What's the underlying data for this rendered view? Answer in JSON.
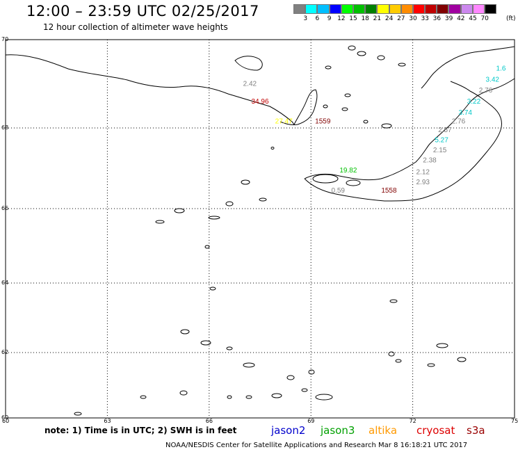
{
  "title": "12:00 – 23:59 UTC 02/25/2017",
  "subtitle": "12 hour collection of altimeter wave heights",
  "colorbar": {
    "colors": [
      "#808080",
      "#00ffff",
      "#00bfff",
      "#0000ff",
      "#00ff00",
      "#00c000",
      "#008000",
      "#ffff00",
      "#ffcc00",
      "#ff8c00",
      "#ff0000",
      "#c00000",
      "#800000",
      "#a000a0",
      "#cc88ee",
      "#ff88ff",
      "#000000"
    ],
    "labels": [
      "3",
      "6",
      "9",
      "12",
      "15",
      "18",
      "21",
      "24",
      "27",
      "30",
      "33",
      "36",
      "39",
      "42",
      "45",
      "70"
    ],
    "unit": "(ft)"
  },
  "map": {
    "lat_labels": [
      "70",
      "68",
      "66",
      "64",
      "62",
      "60"
    ],
    "lon_labels": [
      "60",
      "63",
      "66",
      "69",
      "72",
      "75"
    ],
    "lat_range": [
      60,
      70
    ],
    "lon_range": [
      60,
      75
    ]
  },
  "observations": [
    {
      "value": "2.42",
      "color": "#808080",
      "lon": 67.2,
      "lat": 68.95
    },
    {
      "value": "34.96",
      "color": "#c00000",
      "lon": 67.5,
      "lat": 68.55
    },
    {
      "value": "27.47",
      "color": "#ffff00",
      "lon": 68.2,
      "lat": 68.1
    },
    {
      "value": "1559",
      "color": "#800000",
      "lon": 69.35,
      "lat": 68.1
    },
    {
      "value": "19.82",
      "color": "#00c000",
      "lon": 70.1,
      "lat": 66.9
    },
    {
      "value": "0.59",
      "color": "#808080",
      "lon": 69.8,
      "lat": 66.4
    },
    {
      "value": "1558",
      "color": "#800000",
      "lon": 71.3,
      "lat": 66.4
    },
    {
      "value": "2.93",
      "color": "#808080",
      "lon": 72.3,
      "lat": 66.6
    },
    {
      "value": "2.12",
      "color": "#808080",
      "lon": 72.3,
      "lat": 66.85
    },
    {
      "value": "2.38",
      "color": "#808080",
      "lon": 72.5,
      "lat": 67.15
    },
    {
      "value": "2.15",
      "color": "#808080",
      "lon": 72.8,
      "lat": 67.4
    },
    {
      "value": "5.27",
      "color": "#00c8c8",
      "lon": 72.85,
      "lat": 67.65
    },
    {
      "value": "2.57",
      "color": "#808080",
      "lon": 72.95,
      "lat": 67.9
    },
    {
      "value": "2.76",
      "color": "#808080",
      "lon": 73.35,
      "lat": 68.1
    },
    {
      "value": "3.74",
      "color": "#00c8c8",
      "lon": 73.55,
      "lat": 68.3
    },
    {
      "value": "3.22",
      "color": "#00c8c8",
      "lon": 73.8,
      "lat": 68.55
    },
    {
      "value": "2.76",
      "color": "#808080",
      "lon": 74.15,
      "lat": 68.8
    },
    {
      "value": "3.42",
      "color": "#00c8c8",
      "lon": 74.35,
      "lat": 69.05
    },
    {
      "value": "1.6",
      "color": "#00c8c8",
      "lon": 74.6,
      "lat": 69.3
    }
  ],
  "note": "note: 1) Time is in UTC; 2) SWH is in feet",
  "legend": [
    {
      "label": "jason2",
      "color": "#0000cc"
    },
    {
      "label": "jason3",
      "color": "#00a000"
    },
    {
      "label": "altika",
      "color": "#ff9900"
    },
    {
      "label": "cryosat",
      "color": "#dd0000"
    },
    {
      "label": "s3a",
      "color": "#990000"
    }
  ],
  "footer": "NOAA/NESDIS Center for Satellite Applications and Research    Mar  8 16:18:21 UTC 2017"
}
